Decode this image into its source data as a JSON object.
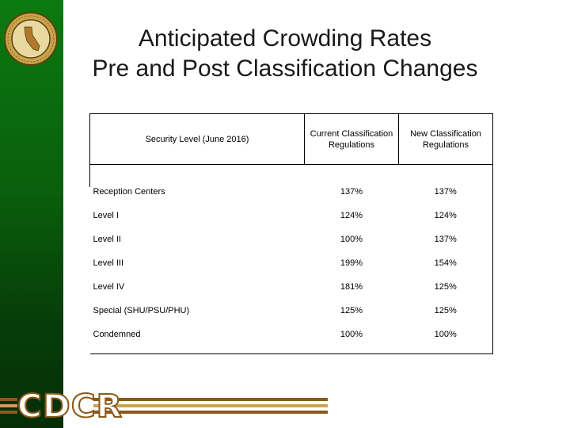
{
  "title": {
    "line1": "Anticipated Crowding Rates",
    "line2": "Pre and Post Classification Changes"
  },
  "table": {
    "headers": [
      "Security Level  (June 2016)",
      "Current Classification Regulations",
      "New Classification Regulations"
    ],
    "rows": [
      [
        "Reception Centers",
        "137%",
        "137%"
      ],
      [
        "Level I",
        "124%",
        "124%"
      ],
      [
        "Level II",
        "100%",
        "137%"
      ],
      [
        "Level III",
        "199%",
        "154%"
      ],
      [
        "Level IV",
        "181%",
        "125%"
      ],
      [
        "Special  (SHU/PSU/PHU)",
        "125%",
        "125%"
      ],
      [
        "Condemned",
        "100%",
        "100%"
      ]
    ]
  },
  "logo": {
    "text": "CDCR"
  },
  "colors": {
    "sidebar": "#0a5e0d",
    "logo_stripe": "#8b5a1a",
    "logo_stripe_light": "#c8a060"
  }
}
